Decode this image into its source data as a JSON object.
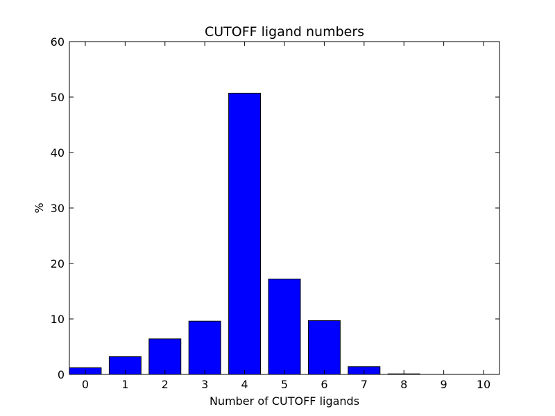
{
  "chart_data": {
    "type": "bar",
    "title": "CUTOFF ligand numbers",
    "xlabel": "Number of CUTOFF ligands",
    "ylabel": "%",
    "categories": [
      "0",
      "1",
      "2",
      "3",
      "4",
      "5",
      "6",
      "7",
      "8",
      "9",
      "10"
    ],
    "values": [
      1.2,
      3.2,
      6.4,
      9.6,
      50.7,
      17.2,
      9.7,
      1.4,
      0.1,
      0.0,
      0.0
    ],
    "xlim": [
      -0.4,
      10.4
    ],
    "ylim": [
      0,
      60
    ],
    "yticks": [
      0,
      10,
      20,
      30,
      40,
      50,
      60
    ],
    "grid": false,
    "legend": "none",
    "colors": {
      "bar_fill": "#0000ff",
      "bar_edge": "#000000",
      "axes": "#000000"
    }
  }
}
